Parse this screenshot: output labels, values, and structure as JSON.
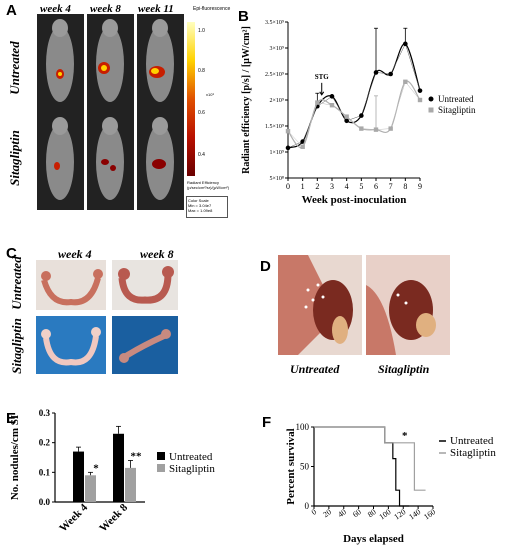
{
  "panel_labels": {
    "a": "A",
    "b": "B",
    "c": "C",
    "d": "D",
    "e": "E",
    "f": "F"
  },
  "panel_a": {
    "columns": [
      "week 4",
      "week 8",
      "week 11"
    ],
    "rows": [
      "Untreated",
      "Sitagliptin"
    ],
    "scale_title": "Epi-fluorescence",
    "scale_ticks": [
      "1.0",
      "0.8",
      "0.6",
      "0.4"
    ],
    "scale_unit_exp": "x10⁹",
    "scale_caption": "Radiant Efficiency (p/sec/cm²/sr)/(µW/cm²)",
    "color_scale_title": "Color Scale",
    "color_scale_min": "Min = 3.04e7",
    "color_scale_max": "Max = 1.09e8"
  },
  "panel_c": {
    "columns": [
      "week 4",
      "week 8"
    ],
    "rows": [
      "Untreated",
      "Sitagliptin"
    ]
  },
  "panel_d": {
    "captions": [
      "Untreated",
      "Sitagliptin"
    ]
  },
  "chart_data": [
    {
      "panel": "B",
      "type": "line",
      "xlabel": "Week post-inoculation",
      "ylabel": "Radiant efficiency [p/s] / [µW/cm²]",
      "x": [
        0,
        1,
        2,
        3,
        4,
        5,
        6,
        7,
        8,
        9
      ],
      "xlim": [
        0,
        9
      ],
      "ylim": [
        500000000,
        3500000000
      ],
      "yticks": [
        "5×10⁸",
        "1×10⁹",
        "1.5×10⁹",
        "2×10⁹",
        "2.5×10⁹",
        "3×10⁹",
        "3.5×10⁹"
      ],
      "ytick_values": [
        500000000,
        1000000000,
        1500000000,
        2000000000,
        2500000000,
        3000000000,
        3500000000
      ],
      "annotation": "STG",
      "annotation_x": 2.3,
      "legend_position": "right",
      "series": [
        {
          "name": "Untreated",
          "marker": "circle",
          "color": "#000000",
          "values": [
            1080000000,
            1200000000,
            1880000000,
            2070000000,
            1600000000,
            1700000000,
            2530000000,
            2500000000,
            3080000000,
            2180000000
          ],
          "err": [
            0,
            0,
            250000000,
            0,
            0,
            0,
            850000000,
            0,
            300000000,
            0
          ]
        },
        {
          "name": "Sitagliptin",
          "marker": "square",
          "color": "#a9a9a9",
          "values": [
            1400000000,
            1100000000,
            1950000000,
            1900000000,
            1680000000,
            1450000000,
            1430000000,
            1450000000,
            2350000000,
            2000000000
          ],
          "err": [
            0,
            0,
            0,
            0,
            0,
            0,
            650000000,
            0,
            0,
            0
          ]
        }
      ]
    },
    {
      "panel": "E",
      "type": "bar",
      "ylabel": "No. nodules/cm SI",
      "categories": [
        "Week 4",
        "Week 8"
      ],
      "ylim": [
        0,
        0.3
      ],
      "yticks": [
        "0.0",
        "0.1",
        "0.2",
        "0.3"
      ],
      "ytick_values": [
        0,
        0.1,
        0.2,
        0.3
      ],
      "legend_position": "right",
      "series": [
        {
          "name": "Untreated",
          "color": "#000000",
          "values": [
            0.17,
            0.23
          ],
          "err": [
            0.015,
            0.025
          ]
        },
        {
          "name": "Sitagliptin",
          "color": "#a0a0a0",
          "values": [
            0.09,
            0.115
          ],
          "err": [
            0.01,
            0.025
          ]
        }
      ],
      "significance": [
        "*",
        "**"
      ]
    },
    {
      "panel": "F",
      "type": "line",
      "xlabel": "Days elapsed",
      "ylabel": "Percent survival",
      "xlim": [
        0,
        160
      ],
      "ylim": [
        0,
        100
      ],
      "xticks": [
        "0",
        "20",
        "40",
        "60",
        "80",
        "100",
        "120",
        "140",
        "160"
      ],
      "xtick_values": [
        0,
        20,
        40,
        60,
        80,
        100,
        120,
        140,
        160
      ],
      "yticks": [
        "0",
        "50",
        "100"
      ],
      "ytick_values": [
        0,
        50,
        100
      ],
      "annotation": "*",
      "legend_position": "right",
      "series": [
        {
          "name": "Untreated",
          "color": "#000000",
          "x": [
            0,
            95,
            95,
            106,
            106,
            110,
            110,
            115,
            115,
            128
          ],
          "y": [
            100,
            100,
            80,
            80,
            60,
            60,
            20,
            20,
            0,
            0
          ]
        },
        {
          "name": "Sitagliptin",
          "color": "#a0a0a0",
          "x": [
            0,
            95,
            95,
            135,
            135,
            140,
            140,
            150
          ],
          "y": [
            100,
            100,
            80,
            80,
            20,
            20,
            20,
            20
          ]
        }
      ]
    }
  ],
  "colors": {
    "signal_red": "#c81e00",
    "signal_yellow": "#ffd200",
    "tissue_pink": "#d07a72",
    "blue_background": "#1a5fa0"
  }
}
